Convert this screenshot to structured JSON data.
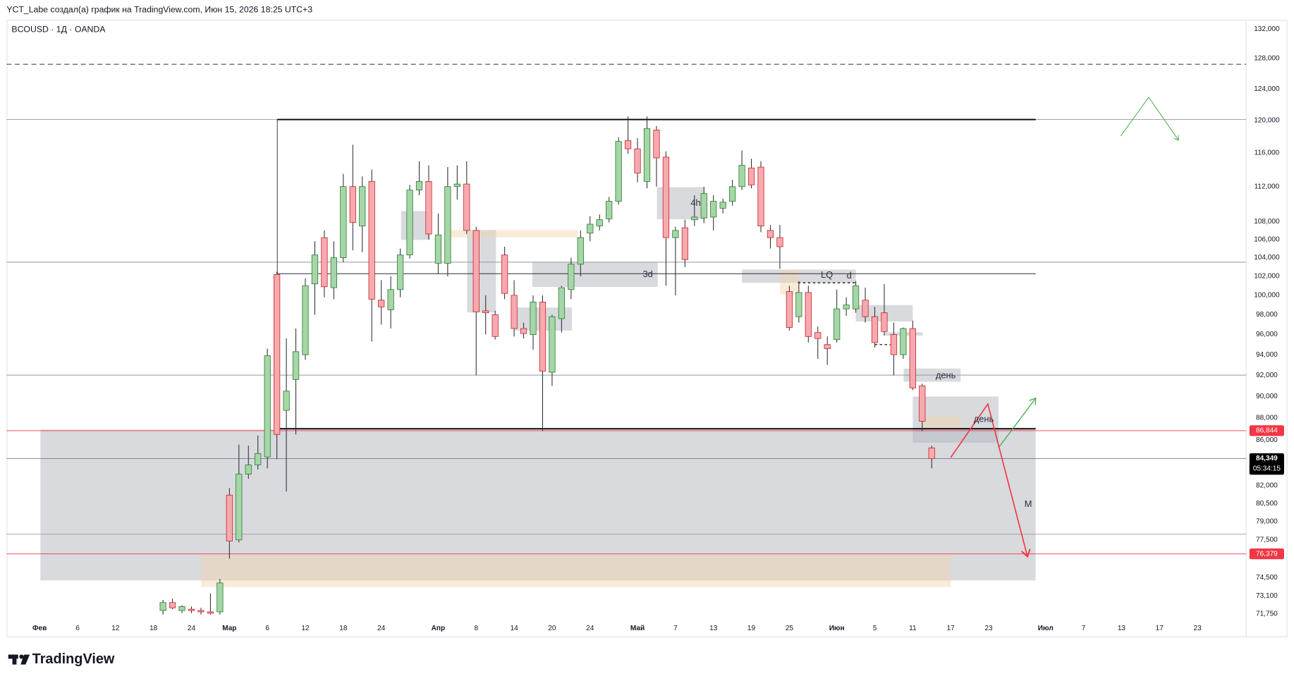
{
  "header": "YCT_Labe создал(а) график на TradingView.com, Июн 15, 2026 18:25 UTC+3",
  "footer": "TradingView",
  "chart_data": {
    "type": "candlestick",
    "title": "BCOUSD · 1Д · OANDA",
    "log_scale": true,
    "grid": false,
    "up_color": "#a5d6a7",
    "down_color": "#f7a9b0",
    "wick_color": "#2a2e39",
    "ylim": [
      70.5,
      133.5
    ],
    "yticks": [
      {
        "value": 132,
        "label": "132,000"
      },
      {
        "value": 128,
        "label": "128,000"
      },
      {
        "value": 124,
        "label": "124,000"
      },
      {
        "value": 120,
        "label": "120,000"
      },
      {
        "value": 116,
        "label": "116,000"
      },
      {
        "value": 112,
        "label": "112,000"
      },
      {
        "value": 108,
        "label": "108,000"
      },
      {
        "value": 106,
        "label": "106,000"
      },
      {
        "value": 104,
        "label": "104,000"
      },
      {
        "value": 102,
        "label": "102,000"
      },
      {
        "value": 100,
        "label": "100,000"
      },
      {
        "value": 98,
        "label": "98,000"
      },
      {
        "value": 96,
        "label": "96,000"
      },
      {
        "value": 94,
        "label": "94,000"
      },
      {
        "value": 92,
        "label": "92,000"
      },
      {
        "value": 90,
        "label": "90,000"
      },
      {
        "value": 88,
        "label": "88,000"
      },
      {
        "value": 86,
        "label": "86,000"
      },
      {
        "value": 82,
        "label": "82,000"
      },
      {
        "value": 80.5,
        "label": "80,500"
      },
      {
        "value": 79,
        "label": "79,000"
      },
      {
        "value": 77.5,
        "label": "77,500"
      },
      {
        "value": 74.5,
        "label": "74,500"
      },
      {
        "value": 73.1,
        "label": "73,100"
      },
      {
        "value": 71.75,
        "label": "71,750"
      }
    ],
    "categories": [
      "Фев",
      null,
      null,
      null,
      "6",
      null,
      null,
      null,
      "12",
      null,
      null,
      null,
      "18",
      null,
      null,
      null,
      "24",
      null,
      null,
      null,
      "Мар",
      null,
      null,
      null,
      "6",
      null,
      null,
      null,
      "12",
      null,
      null,
      null,
      "18",
      null,
      null,
      null,
      "24",
      null,
      null,
      null,
      null,
      null,
      "Апр",
      null,
      null,
      null,
      "8",
      null,
      null,
      null,
      "14",
      null,
      null,
      null,
      "20",
      null,
      null,
      null,
      "24",
      null,
      null,
      null,
      null,
      "Май",
      null,
      null,
      null,
      "7",
      null,
      null,
      null,
      "13",
      null,
      null,
      null,
      "19",
      null,
      null,
      null,
      "25",
      null,
      null,
      null,
      null,
      "Июн",
      null,
      null,
      null,
      "5",
      null,
      null,
      null,
      "11",
      null,
      null,
      null,
      "17",
      null,
      null,
      null,
      "23",
      null,
      null,
      null,
      null,
      null,
      "Июл",
      null,
      null,
      null,
      "7",
      null,
      null,
      null,
      "13",
      null,
      null,
      null,
      "17",
      null,
      null,
      null,
      "23",
      null,
      null,
      null,
      null
    ],
    "open": [
      null,
      null,
      null,
      null,
      null,
      null,
      null,
      null,
      null,
      null,
      null,
      null,
      null,
      72.0,
      72.6,
      72.0,
      72.1,
      72.0,
      71.9,
      71.9,
      81.2,
      77.5,
      83.0,
      83.8,
      84.5,
      102.2,
      88.7,
      91.6,
      94.0,
      101.2,
      106.2,
      100.8,
      104.0,
      112.0,
      107.5,
      112.6,
      99.5,
      98.5,
      100.6,
      104.3,
      111.6,
      112.6,
      103.4,
      103.4,
      112.0,
      112.3,
      107.0,
      98.4,
      98.0,
      104.3,
      100.0,
      96.6,
      96.0,
      99.3,
      92.3,
      97.6,
      100.6,
      103.3,
      106.7,
      107.5,
      108.3,
      110.3,
      117.5,
      116.5,
      112.6,
      118.8,
      115.5,
      106.2,
      107.3,
      108.2,
      108.4,
      108.5,
      109.5,
      110.3,
      112.0,
      114.2,
      114.3,
      107.0,
      106.2,
      100.4,
      97.8,
      100.3,
      96.2,
      95.0,
      95.5,
      98.6,
      98.6,
      99.5,
      97.8,
      98.2,
      96.0,
      94.0,
      96.6,
      91.0,
      85.3,
      null,
      null,
      null,
      null,
      null,
      null,
      null,
      null,
      null,
      null,
      null,
      null,
      null,
      null,
      null,
      null,
      null,
      null,
      null,
      null,
      null,
      null,
      null,
      null,
      null,
      null,
      null,
      null,
      null,
      null,
      null,
      null
    ],
    "high": [
      null,
      null,
      null,
      null,
      null,
      null,
      null,
      null,
      null,
      null,
      null,
      null,
      null,
      72.8,
      72.9,
      72.4,
      72.3,
      72.2,
      73.3,
      74.4,
      81.8,
      85.6,
      85.5,
      86.4,
      94.6,
      102.5,
      95.6,
      96.6,
      101.8,
      105.8,
      107.0,
      105.8,
      113.5,
      117.0,
      113.2,
      114.0,
      101.6,
      102.0,
      105.0,
      112.2,
      115.0,
      114.5,
      108.9,
      114.3,
      114.5,
      115.0,
      107.4,
      100.0,
      98.4,
      105.2,
      101.6,
      97.2,
      100.0,
      100.0,
      98.0,
      101.0,
      104.0,
      107.0,
      108.6,
      108.8,
      110.8,
      117.9,
      120.5,
      117.8,
      120.5,
      119.3,
      116.2,
      107.4,
      108.2,
      111.0,
      112.0,
      111.0,
      110.6,
      112.8,
      116.3,
      115.3,
      115.0,
      107.6,
      107.6,
      101.0,
      101.5,
      101.0,
      96.8,
      95.8,
      100.6,
      99.8,
      101.5,
      100.8,
      98.8,
      101.2,
      97.2,
      96.7,
      97.4,
      91.2,
      85.5,
      null,
      null,
      null,
      null,
      null,
      null,
      null,
      null,
      null,
      null,
      null,
      null,
      null,
      null,
      null,
      null,
      null,
      null,
      null,
      null,
      null,
      null,
      null,
      null,
      null,
      null,
      null,
      null,
      null,
      null,
      null,
      null
    ],
    "low": [
      null,
      null,
      null,
      null,
      null,
      null,
      null,
      null,
      null,
      null,
      null,
      null,
      null,
      71.7,
      72.1,
      71.8,
      71.8,
      71.7,
      71.7,
      71.7,
      76.0,
      77.3,
      82.6,
      83.4,
      83.5,
      84.3,
      81.5,
      86.5,
      93.5,
      98.0,
      99.8,
      99.6,
      103.5,
      104.8,
      104.6,
      95.3,
      97.0,
      96.6,
      99.8,
      103.9,
      111.0,
      106.0,
      102.3,
      102.0,
      110.5,
      106.6,
      92.0,
      96.0,
      95.5,
      99.6,
      95.8,
      95.6,
      94.5,
      86.8,
      91.0,
      96.2,
      99.6,
      102.0,
      105.8,
      107.0,
      107.9,
      109.9,
      115.9,
      112.5,
      111.8,
      112.0,
      101.0,
      100.0,
      103.0,
      107.5,
      107.8,
      107.0,
      108.9,
      109.8,
      111.6,
      111.8,
      106.8,
      105.0,
      102.8,
      96.4,
      97.2,
      95.2,
      93.6,
      93.0,
      95.2,
      97.9,
      98.2,
      97.2,
      94.7,
      95.9,
      92.0,
      93.6,
      90.6,
      86.8,
      83.5,
      null,
      null,
      null,
      null,
      null,
      null,
      null,
      null,
      null,
      null,
      null,
      null,
      null,
      null,
      null,
      null,
      null,
      null,
      null,
      null,
      null,
      null,
      null,
      null,
      null,
      null,
      null,
      null,
      null,
      null,
      null,
      null
    ],
    "close": [
      null,
      null,
      null,
      null,
      null,
      null,
      null,
      null,
      null,
      null,
      null,
      null,
      null,
      72.6,
      72.2,
      72.3,
      72.0,
      71.9,
      71.8,
      74.1,
      77.4,
      83.0,
      83.8,
      84.8,
      93.9,
      86.5,
      90.5,
      94.3,
      101.0,
      104.3,
      100.9,
      104.0,
      112.0,
      107.9,
      112.0,
      99.6,
      98.8,
      100.6,
      104.3,
      111.6,
      112.6,
      106.6,
      106.5,
      112.0,
      112.3,
      107.0,
      98.3,
      98.2,
      95.8,
      100.2,
      96.6,
      96.1,
      99.3,
      92.4,
      97.8,
      100.8,
      103.3,
      106.2,
      107.7,
      108.2,
      110.3,
      117.4,
      116.5,
      113.6,
      119.0,
      115.4,
      106.2,
      107.0,
      103.8,
      108.5,
      111.2,
      110.3,
      110.2,
      112.0,
      114.5,
      112.2,
      107.5,
      106.2,
      105.2,
      96.7,
      100.3,
      95.8,
      95.6,
      94.6,
      98.6,
      99.0,
      101.0,
      97.8,
      95.2,
      96.3,
      94.0,
      96.6,
      90.8,
      87.7,
      84.349,
      null,
      null,
      null,
      null,
      null,
      null,
      null,
      null,
      null,
      null,
      null,
      null,
      null,
      null,
      null,
      null,
      null,
      null,
      null,
      null,
      null,
      null,
      null,
      null,
      null,
      null,
      null,
      null,
      null,
      null,
      null,
      null
    ],
    "price_markers": [
      {
        "value": 86.844,
        "label": "86,844",
        "color": "#f23645"
      },
      {
        "value": 76.379,
        "label": "76,379",
        "color": "#f23645"
      }
    ],
    "last_price": {
      "value": 84.349,
      "label": "84,349",
      "countdown": "05:34:15",
      "color": "#000000"
    },
    "annotations": [
      "3d",
      "4h",
      "LQ",
      "d",
      "день",
      "день",
      "M"
    ]
  }
}
